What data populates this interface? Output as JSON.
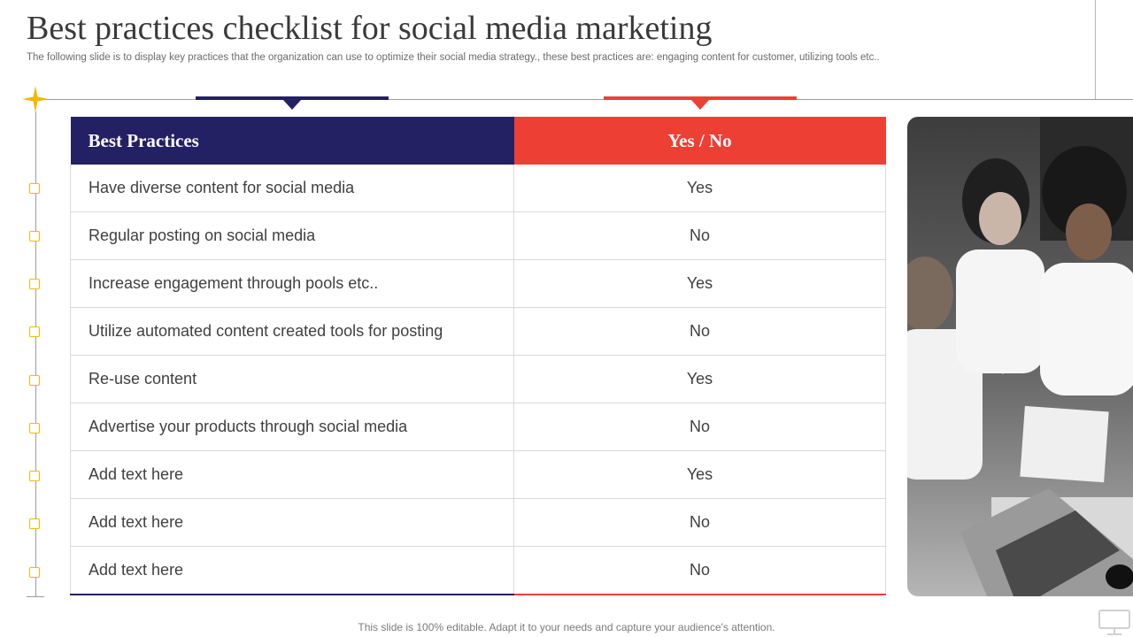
{
  "header": {
    "title": "Best practices checklist for social media marketing",
    "subtitle": "The following slide is to display key practices that the organization can use to optimize their social media strategy., these best practices are: engaging content for customer, utilizing tools etc.."
  },
  "table": {
    "headers": {
      "practice": "Best Practices",
      "yes_no": "Yes / No"
    },
    "rows": [
      {
        "practice": "Have diverse content for social media",
        "answer": "Yes"
      },
      {
        "practice": "Regular posting on social media",
        "answer": "No"
      },
      {
        "practice": "Increase engagement through pools etc..",
        "answer": "Yes"
      },
      {
        "practice": "Utilize automated content created tools for posting",
        "answer": "No"
      },
      {
        "practice": "Re-use content",
        "answer": "Yes"
      },
      {
        "practice": "Advertise your products through social media",
        "answer": "No"
      },
      {
        "practice": "Add text here",
        "answer": "Yes"
      },
      {
        "practice": "Add text here",
        "answer": "No"
      },
      {
        "practice": "Add text here",
        "answer": "No"
      }
    ]
  },
  "footer": {
    "note": "This slide is 100% editable. Adapt it to your needs and capture your audience's attention."
  },
  "icons": {
    "star": "star-icon",
    "checkbox": "checkbox-icon",
    "monitor": "monitor-icon",
    "photo": "team-photo"
  },
  "colors": {
    "navy": "#232063",
    "red": "#ee3f35",
    "gold": "#f2b705",
    "text": "#404040"
  }
}
